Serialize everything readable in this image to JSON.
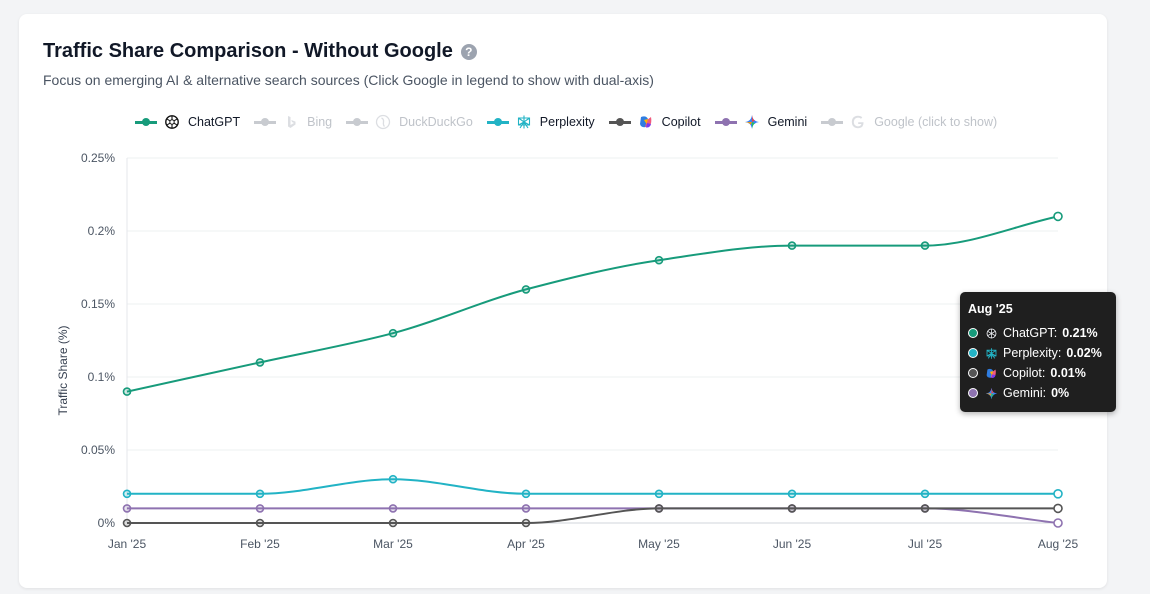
{
  "header": {
    "title": "Traffic Share Comparison - Without Google",
    "help_icon": "?",
    "subtitle": "Focus on emerging AI & alternative search sources (Click Google in legend to show with dual-axis)"
  },
  "legend": [
    {
      "key": "chatgpt",
      "label": "ChatGPT",
      "color": "#179b7b",
      "icon": "chatgpt-icon",
      "active": true
    },
    {
      "key": "bing",
      "label": "Bing",
      "color": "#c8cbd0",
      "icon": "bing-icon",
      "active": false
    },
    {
      "key": "duckduckgo",
      "label": "DuckDuckGo",
      "color": "#c8cbd0",
      "icon": "duckduckgo-icon",
      "active": false
    },
    {
      "key": "perplexity",
      "label": "Perplexity",
      "color": "#22b3c5",
      "icon": "perplexity-icon",
      "active": true
    },
    {
      "key": "copilot",
      "label": "Copilot",
      "color": "#555555",
      "icon": "copilot-icon",
      "active": true
    },
    {
      "key": "gemini",
      "label": "Gemini",
      "color": "#8e72b0",
      "icon": "gemini-icon",
      "active": true
    },
    {
      "key": "google",
      "label": "Google (click to show)",
      "color": "#c8cbd0",
      "icon": "google-icon",
      "active": false
    }
  ],
  "chart_data": {
    "type": "line",
    "categories": [
      "Jan '25",
      "Feb '25",
      "Mar '25",
      "Apr '25",
      "May '25",
      "Jun '25",
      "Jul '25",
      "Aug '25"
    ],
    "ylabel": "Traffic Share (%)",
    "ylim": [
      0,
      0.25
    ],
    "yticks": [
      0,
      0.05,
      0.1,
      0.15,
      0.2,
      0.25
    ],
    "ytick_labels": [
      "0%",
      "0.05%",
      "0.1%",
      "0.15%",
      "0.2%",
      "0.25%"
    ],
    "grid": true,
    "series": [
      {
        "name": "ChatGPT",
        "color": "#179b7b",
        "values": [
          0.09,
          0.11,
          0.13,
          0.16,
          0.18,
          0.19,
          0.19,
          0.21
        ]
      },
      {
        "name": "Perplexity",
        "color": "#22b3c5",
        "values": [
          0.02,
          0.02,
          0.03,
          0.02,
          0.02,
          0.02,
          0.02,
          0.02
        ]
      },
      {
        "name": "Gemini",
        "color": "#8e72b0",
        "values": [
          0.01,
          0.01,
          0.01,
          0.01,
          0.01,
          0.01,
          0.01,
          0.0
        ]
      },
      {
        "name": "Copilot",
        "color": "#555555",
        "values": [
          0.0,
          0.0,
          0.0,
          0.0,
          0.01,
          0.01,
          0.01,
          0.01
        ]
      }
    ]
  },
  "tooltip": {
    "title": "Aug '25",
    "rows": [
      {
        "label": "ChatGPT:",
        "value": "0.21%",
        "color": "#179b7b",
        "icon": "chatgpt-icon"
      },
      {
        "label": "Perplexity:",
        "value": "0.02%",
        "color": "#22b3c5",
        "icon": "perplexity-icon"
      },
      {
        "label": "Copilot:",
        "value": "0.01%",
        "color": "#555555",
        "icon": "copilot-icon"
      },
      {
        "label": "Gemini:",
        "value": "0%",
        "color": "#8e72b0",
        "icon": "gemini-icon"
      }
    ]
  }
}
